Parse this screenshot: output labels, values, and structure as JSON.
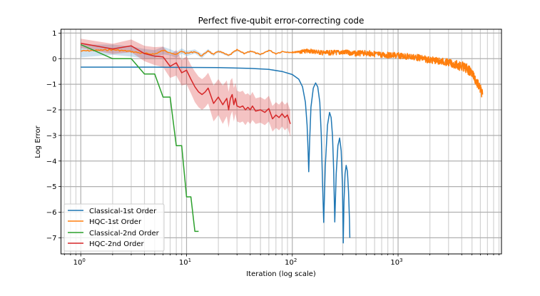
{
  "chart_data": {
    "type": "line",
    "title": "Perfect five-qubit error-correcting code",
    "xlabel": "Iteration (log scale)",
    "ylabel": "Log Error",
    "xscale": "log",
    "xlim": [
      0.65,
      9500
    ],
    "ylim": [
      -7.63,
      1.15
    ],
    "grid": true,
    "legend_position": "lower left",
    "xticks": [
      {
        "value": 1,
        "label": "10",
        "exp": "0"
      },
      {
        "value": 10,
        "label": "10",
        "exp": "1"
      },
      {
        "value": 100,
        "label": "10",
        "exp": "2"
      },
      {
        "value": 1000,
        "label": "10",
        "exp": "3"
      }
    ],
    "yticks": [
      1,
      0,
      -1,
      -2,
      -3,
      -4,
      -5,
      -6,
      -7
    ],
    "series": [
      {
        "name": "Classical-1st Order",
        "color": "#1f77b4",
        "x": [
          1,
          5,
          10,
          20,
          40,
          60,
          80,
          100,
          115,
          125,
          133,
          138,
          141,
          143,
          146,
          150,
          158,
          166,
          174,
          182,
          188,
          193,
          198,
          205,
          215,
          225,
          233,
          240,
          246,
          252,
          260,
          270,
          280,
          290,
          298,
          303,
          308,
          315,
          323,
          332,
          340,
          347,
          350
        ],
        "values": [
          -0.33,
          -0.33,
          -0.34,
          -0.35,
          -0.38,
          -0.42,
          -0.5,
          -0.62,
          -0.8,
          -1.1,
          -1.7,
          -2.6,
          -3.6,
          -4.42,
          -3.2,
          -1.9,
          -1.15,
          -0.95,
          -1.1,
          -1.7,
          -3.0,
          -4.8,
          -6.4,
          -4.2,
          -2.6,
          -2.1,
          -2.3,
          -3.0,
          -4.3,
          -6.38,
          -4.5,
          -3.4,
          -3.1,
          -3.6,
          -5.0,
          -7.2,
          -5.6,
          -4.5,
          -4.17,
          -4.4,
          -5.2,
          -6.3,
          -7.0
        ]
      },
      {
        "name": "HQC-1st Order",
        "color": "#ff7f0e",
        "x": [
          1,
          2,
          3,
          4,
          5,
          6,
          7,
          8,
          9,
          10,
          12,
          14,
          16,
          18,
          20,
          25,
          30,
          35,
          40,
          50,
          60,
          70,
          80,
          100,
          150,
          200,
          300,
          400,
          500,
          700,
          1000,
          1500,
          2000,
          2500,
          3000,
          3500,
          4000,
          4500,
          5000,
          5500,
          6000,
          6300
        ],
        "values": [
          0.3,
          0.35,
          0.28,
          0.2,
          0.18,
          0.32,
          0.25,
          0.15,
          0.3,
          0.2,
          0.28,
          0.1,
          0.32,
          0.15,
          0.3,
          0.12,
          0.34,
          0.2,
          0.3,
          0.15,
          0.33,
          0.2,
          0.28,
          0.25,
          0.3,
          0.22,
          0.25,
          0.2,
          0.22,
          0.15,
          0.12,
          0.05,
          -0.05,
          -0.1,
          -0.15,
          -0.25,
          -0.3,
          -0.4,
          -0.55,
          -0.9,
          -1.2,
          -1.4
        ],
        "band_width": [
          0.25,
          0.2,
          0.2,
          0.18,
          0.15,
          0.15,
          0.12,
          0.12,
          0.1,
          0.1,
          0.08,
          0.08,
          0.06,
          0.05,
          0.05,
          0.04,
          0.04,
          0.03,
          0.03,
          0.03,
          0.03,
          0.02,
          0.02,
          0.02,
          0.02,
          0.02,
          0.02,
          0.02,
          0.02,
          0.02,
          0.02,
          0.02,
          0.02,
          0.02,
          0.02,
          0.02,
          0.02,
          0.02,
          0.02,
          0.02,
          0.02,
          0.02
        ],
        "noise_amplitude_late": 0.3
      },
      {
        "name": "Classical-2nd Order",
        "color": "#2ca02c",
        "x": [
          1,
          2,
          3,
          4,
          5,
          6,
          7,
          8,
          9,
          10,
          11,
          12,
          13
        ],
        "values": [
          0.55,
          0.0,
          0.0,
          -0.6,
          -0.6,
          -1.5,
          -1.5,
          -3.4,
          -3.4,
          -5.4,
          -5.4,
          -6.75,
          -6.75
        ]
      },
      {
        "name": "HQC-2nd Order",
        "color": "#d62728",
        "x": [
          1,
          2,
          3,
          4,
          5,
          6,
          7,
          8,
          9,
          10,
          11,
          12,
          13,
          14,
          15,
          16,
          18,
          20,
          22,
          24,
          25,
          26,
          27,
          28,
          29,
          30,
          32,
          34,
          36,
          38,
          40,
          42,
          45,
          50,
          55,
          60,
          65,
          70,
          75,
          80,
          85,
          90,
          96
        ],
        "values": [
          0.6,
          0.38,
          0.5,
          0.2,
          0.1,
          0.07,
          -0.3,
          -0.16,
          -0.55,
          -0.45,
          -0.8,
          -1.1,
          -1.3,
          -1.4,
          -1.3,
          -1.15,
          -1.75,
          -1.5,
          -1.8,
          -1.55,
          -2.0,
          -1.55,
          -1.4,
          -1.8,
          -1.55,
          -1.85,
          -1.9,
          -1.85,
          -2.0,
          -1.9,
          -2.0,
          -1.85,
          -2.05,
          -2.0,
          -2.1,
          -1.95,
          -2.35,
          -2.2,
          -2.3,
          -2.15,
          -2.3,
          -2.2,
          -2.55
        ],
        "band_width": [
          0.18,
          0.2,
          0.25,
          0.3,
          0.35,
          0.4,
          0.45,
          0.5,
          0.5,
          0.55,
          0.55,
          0.6,
          0.6,
          0.6,
          0.6,
          0.6,
          0.7,
          0.7,
          0.75,
          0.7,
          0.7,
          0.7,
          0.65,
          0.65,
          0.6,
          0.6,
          0.6,
          0.6,
          0.6,
          0.55,
          0.55,
          0.55,
          0.5,
          0.5,
          0.5,
          0.5,
          0.5,
          0.5,
          0.5,
          0.5,
          0.5,
          0.5,
          0.5
        ]
      }
    ]
  },
  "legend": {
    "items": [
      {
        "label": "Classical-1st Order",
        "color": "#1f77b4"
      },
      {
        "label": "HQC-1st Order",
        "color": "#ff7f0e"
      },
      {
        "label": "Classical-2nd Order",
        "color": "#2ca02c"
      },
      {
        "label": "HQC-2nd Order",
        "color": "#d62728"
      }
    ]
  }
}
